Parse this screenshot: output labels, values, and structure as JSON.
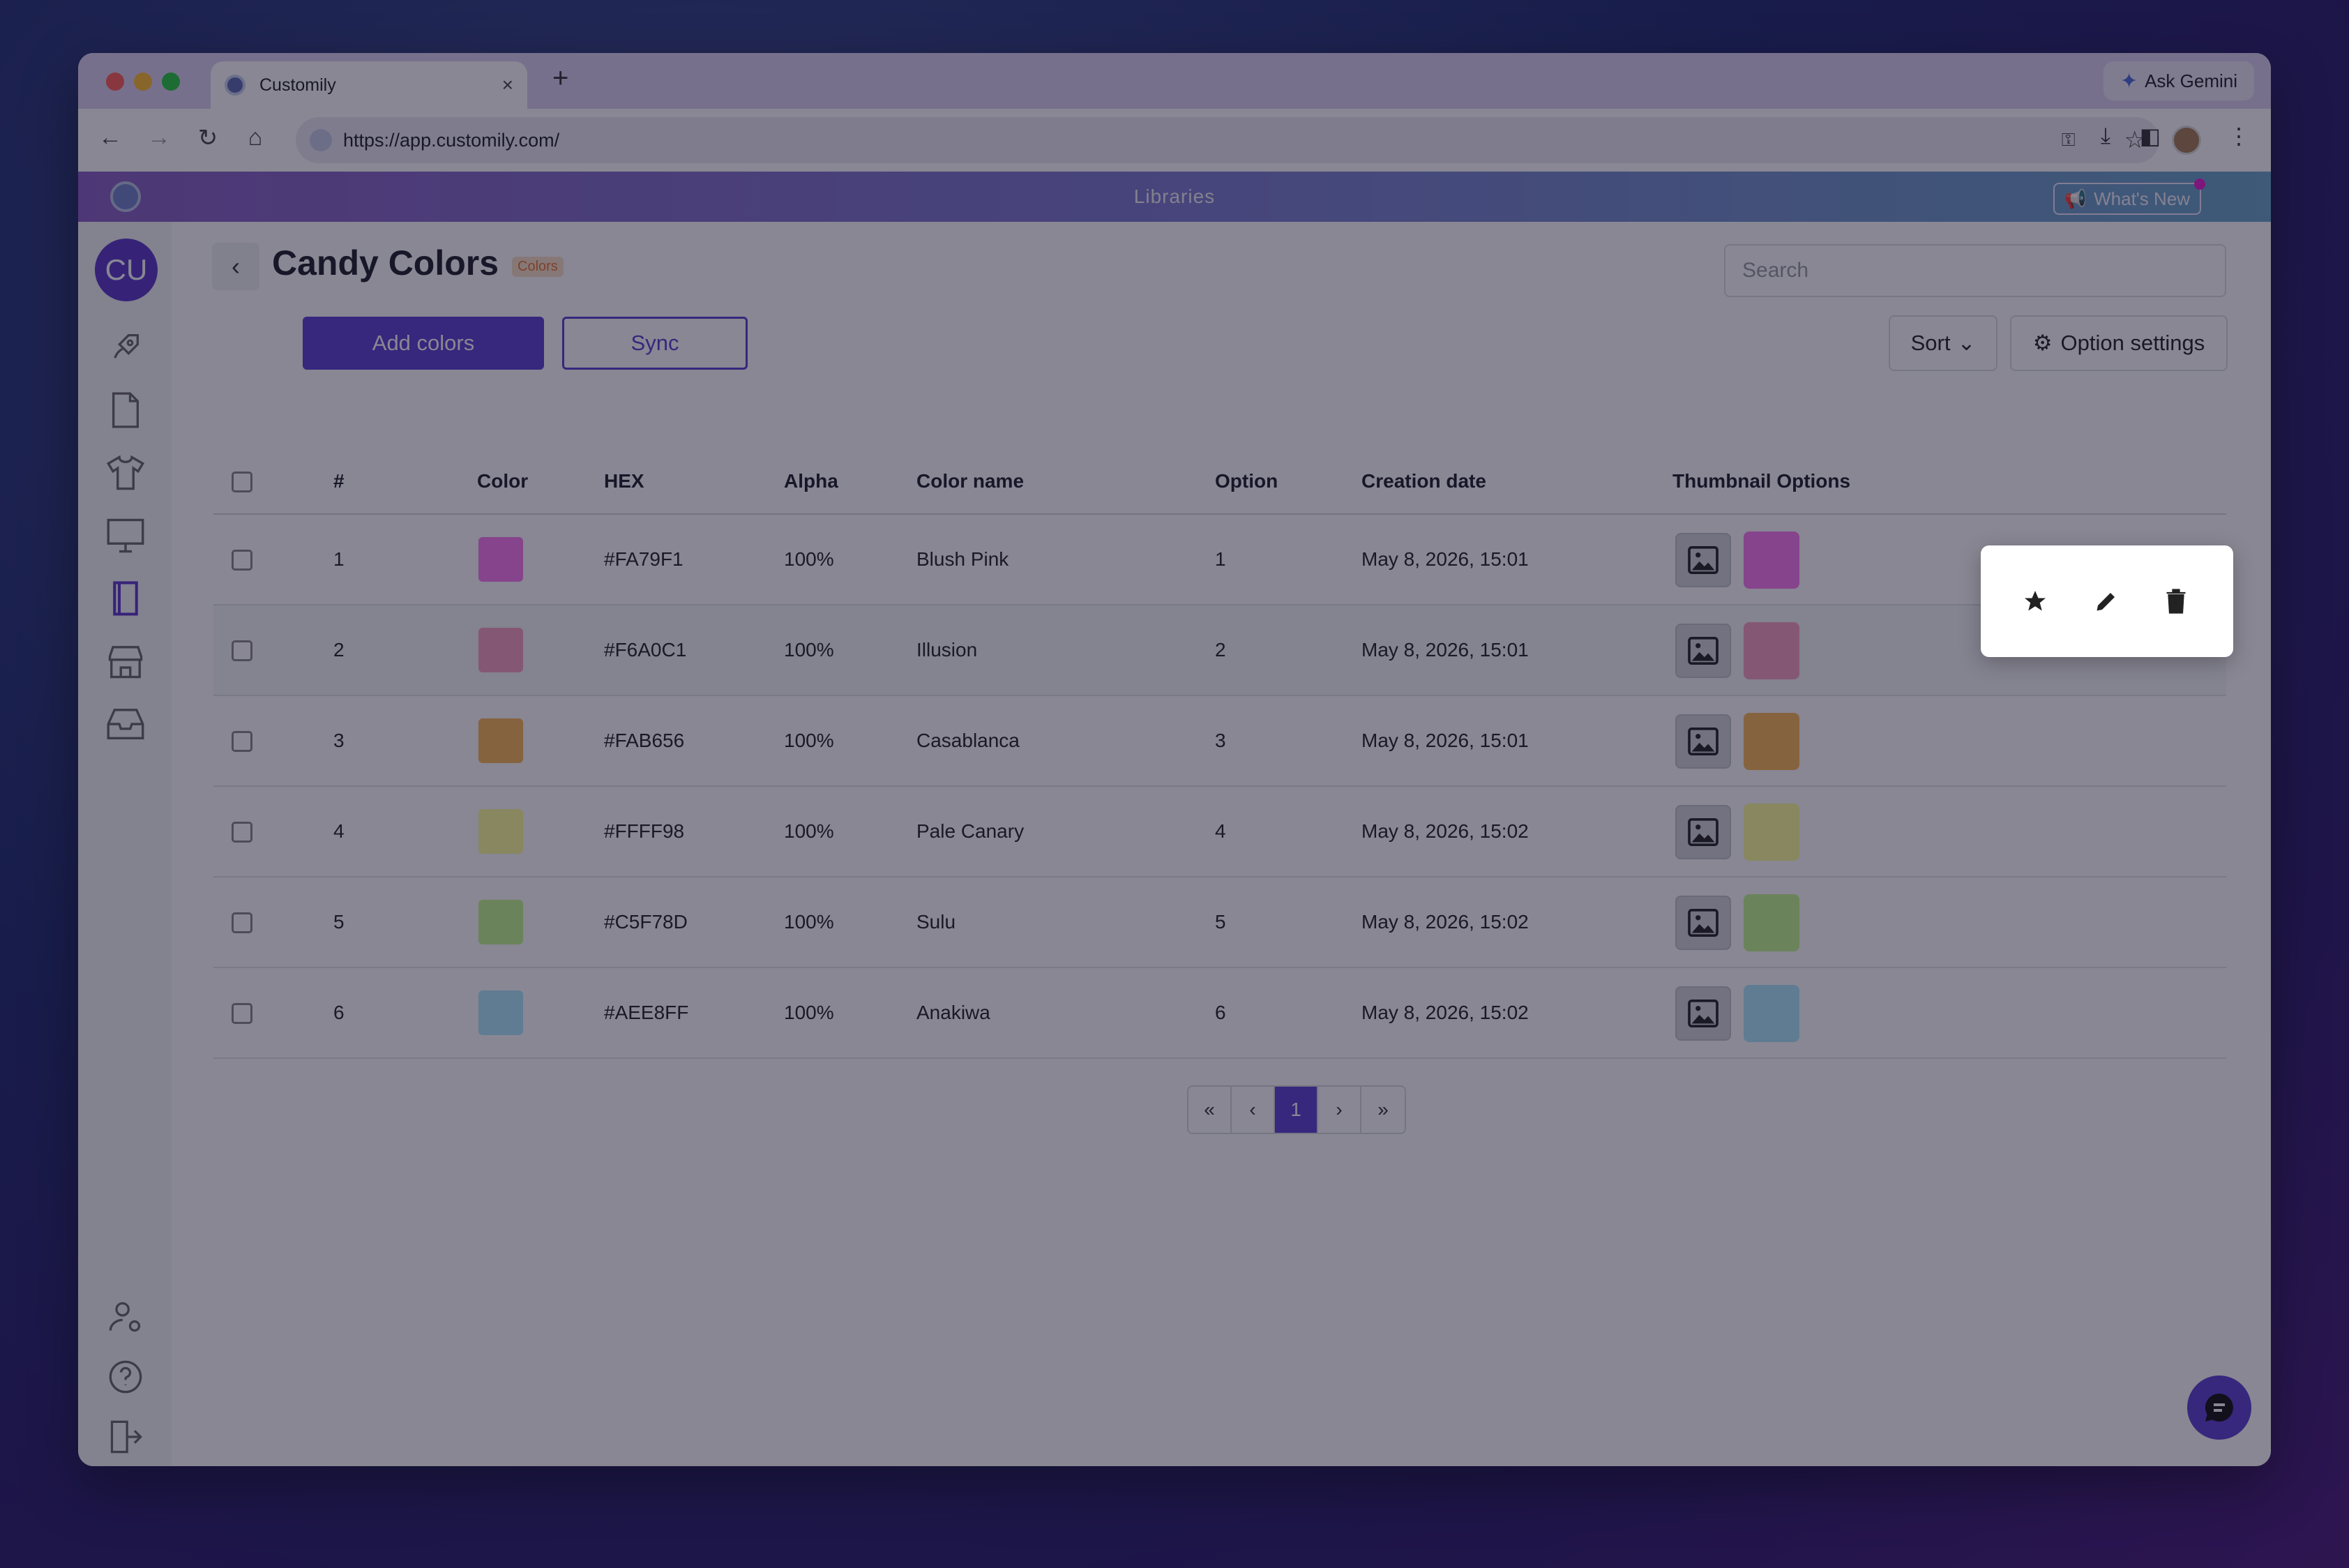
{
  "browser": {
    "tab_title": "Customily",
    "tab_close": "×",
    "new_tab": "+",
    "ask_gemini": "Ask Gemini",
    "url": "https://app.customily.com/"
  },
  "app": {
    "header_title": "Libraries",
    "whats_new": "What's New",
    "user_initials": "CU"
  },
  "page": {
    "title": "Candy Colors",
    "type_badge": "Colors",
    "search_placeholder": "Search",
    "add_colors": "Add colors",
    "sync": "Sync",
    "sort": "Sort",
    "option_settings": "Option settings"
  },
  "table": {
    "columns": [
      "#",
      "Color",
      "HEX",
      "Alpha",
      "Color name",
      "Option",
      "Creation date",
      "Thumbnail Options"
    ],
    "rows": [
      {
        "num": "1",
        "color": "#FA79F1",
        "hex": "#FA79F1",
        "alpha": "100%",
        "name": "Blush Pink",
        "option": "1",
        "date": "May 8, 2026, 15:01"
      },
      {
        "num": "2",
        "color": "#F6A0C1",
        "hex": "#F6A0C1",
        "alpha": "100%",
        "name": "Illusion",
        "option": "2",
        "date": "May 8, 2026, 15:01"
      },
      {
        "num": "3",
        "color": "#FAB656",
        "hex": "#FAB656",
        "alpha": "100%",
        "name": "Casablanca",
        "option": "3",
        "date": "May 8, 2026, 15:01"
      },
      {
        "num": "4",
        "color": "#FFFF98",
        "hex": "#FFFF98",
        "alpha": "100%",
        "name": "Pale Canary",
        "option": "4",
        "date": "May 8, 2026, 15:02"
      },
      {
        "num": "5",
        "color": "#C5F78D",
        "hex": "#C5F78D",
        "alpha": "100%",
        "name": "Sulu",
        "option": "5",
        "date": "May 8, 2026, 15:02"
      },
      {
        "num": "6",
        "color": "#AEE8FF",
        "hex": "#AEE8FF",
        "alpha": "100%",
        "name": "Anakiwa",
        "option": "6",
        "date": "May 8, 2026, 15:02"
      }
    ]
  },
  "pagination": {
    "first": "«",
    "prev": "‹",
    "current": "1",
    "next": "›",
    "last": "»"
  },
  "row_actions": [
    "star-icon",
    "pencil-icon",
    "trash-icon"
  ],
  "colors": {
    "accent": "#5D3FD3",
    "badge_text": "#E8742A",
    "badge_bg": "#FDE0C8"
  }
}
